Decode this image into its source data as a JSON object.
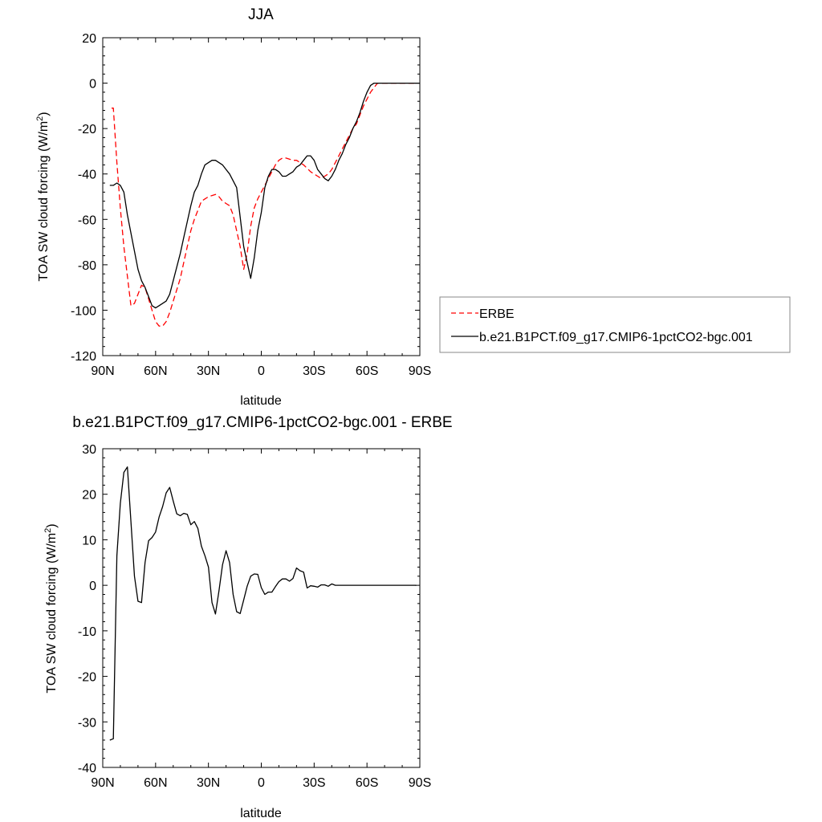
{
  "chart_data": [
    {
      "type": "line",
      "title": "JJA",
      "xlabel": "latitude",
      "ylabel": "TOA SW cloud forcing (W/m",
      "ylabel_sup": "2",
      "ylabel_close": ")",
      "xlim": [
        90,
        -90
      ],
      "ylim": [
        -120,
        20
      ],
      "xticks": [
        90,
        60,
        30,
        0,
        -30,
        -60,
        -90
      ],
      "xtick_labels": [
        "90N",
        "60N",
        "30N",
        "0",
        "30S",
        "60S",
        "90S"
      ],
      "yticks": [
        20,
        0,
        -20,
        -40,
        -60,
        -80,
        -100,
        -120
      ],
      "ytick_labels": [
        "20",
        "0",
        "-20",
        "-40",
        "-60",
        "-80",
        "-100",
        "-120"
      ],
      "legend_position": "right",
      "series": [
        {
          "name": "ERBE",
          "color": "#ff0000",
          "style": "dashed",
          "x": [
            85,
            84,
            82,
            80,
            78,
            76,
            74,
            72,
            70,
            68,
            66,
            64,
            62,
            60,
            58,
            56,
            54,
            52,
            50,
            48,
            46,
            44,
            42,
            40,
            38,
            36,
            34,
            32,
            30,
            28,
            26,
            24,
            22,
            20,
            18,
            16,
            14,
            12,
            10,
            8,
            6,
            4,
            2,
            0,
            -2,
            -4,
            -6,
            -8,
            -10,
            -12,
            -14,
            -16,
            -18,
            -20,
            -22,
            -24,
            -26,
            -28,
            -30,
            -32,
            -34,
            -36,
            -38,
            -40,
            -42,
            -44,
            -46,
            -48,
            -50,
            -52,
            -54,
            -56,
            -58,
            -60,
            -62,
            -64,
            -66,
            -68,
            -70,
            -72,
            -74,
            -76,
            -78,
            -80,
            -82,
            -84,
            -86,
            -88
          ],
          "y": [
            -11,
            -11,
            -35,
            -55,
            -72,
            -85,
            -98,
            -97,
            -93,
            -89,
            -90,
            -95,
            -100,
            -105,
            -107,
            -107,
            -105,
            -101,
            -96,
            -91,
            -86,
            -79,
            -72,
            -65,
            -60,
            -56,
            -52,
            -51,
            -50,
            -49.5,
            -49,
            -50,
            -52,
            -53,
            -54,
            -58,
            -65,
            -72,
            -82,
            -75,
            -63,
            -55,
            -51,
            -48,
            -45,
            -42,
            -39,
            -36,
            -34,
            -33,
            -33,
            -33.5,
            -34,
            -34,
            -35,
            -36,
            -37.5,
            -39,
            -40,
            -41,
            -42,
            -41,
            -40,
            -38,
            -35,
            -32,
            -29,
            -26,
            -23,
            -20,
            -18,
            -14,
            -10,
            -7,
            -4,
            -2,
            0,
            0,
            0,
            0,
            0,
            0,
            0,
            0,
            0,
            0,
            0,
            0
          ]
        },
        {
          "name": "b.e21.B1PCT.f09_g17.CMIP6-1pctCO2-bgc.001",
          "color": "#000000",
          "style": "solid",
          "x": [
            86,
            84,
            82,
            80,
            78,
            76,
            74,
            72,
            70,
            68,
            66,
            64,
            62,
            60,
            58,
            56,
            54,
            52,
            50,
            48,
            46,
            44,
            42,
            40,
            38,
            36,
            34,
            32,
            30,
            28,
            26,
            24,
            22,
            20,
            18,
            16,
            14,
            12,
            10,
            8,
            6,
            4,
            2,
            0,
            -2,
            -4,
            -6,
            -8,
            -10,
            -12,
            -14,
            -16,
            -18,
            -20,
            -22,
            -24,
            -26,
            -28,
            -30,
            -32,
            -34,
            -36,
            -38,
            -40,
            -42,
            -44,
            -46,
            -48,
            -50,
            -52,
            -54,
            -56,
            -58,
            -60,
            -62,
            -64,
            -66,
            -68,
            -70,
            -72,
            -74,
            -76,
            -78,
            -80,
            -82,
            -84,
            -86,
            -88,
            -90
          ],
          "y": [
            -45,
            -45,
            -44,
            -45,
            -48,
            -58,
            -66,
            -74,
            -82,
            -87,
            -90,
            -94,
            -98,
            -99,
            -98,
            -97,
            -96,
            -93,
            -87,
            -81,
            -75,
            -68,
            -61,
            -54,
            -48,
            -45,
            -40,
            -36,
            -35,
            -34,
            -34,
            -35,
            -36,
            -38,
            -40,
            -43,
            -46,
            -59,
            -72,
            -79,
            -86,
            -77,
            -65,
            -57,
            -46,
            -41,
            -38,
            -38,
            -39,
            -41,
            -41,
            -40,
            -39,
            -37,
            -36,
            -34,
            -32,
            -32,
            -34,
            -38,
            -40,
            -42,
            -43,
            -41,
            -38,
            -34,
            -31,
            -27,
            -24,
            -20,
            -17,
            -13,
            -8,
            -4,
            -1,
            0,
            0,
            0,
            0,
            0,
            0,
            0,
            0,
            0,
            0,
            0,
            0,
            0,
            0
          ]
        }
      ]
    },
    {
      "type": "line",
      "title": "b.e21.B1PCT.f09_g17.CMIP6-1pctCO2-bgc.001 - ERBE",
      "xlabel": "latitude",
      "ylabel": "TOA SW cloud forcing (W/m",
      "ylabel_sup": "2",
      "ylabel_close": ")",
      "xlim": [
        90,
        -90
      ],
      "ylim": [
        -40,
        30
      ],
      "xticks": [
        90,
        60,
        30,
        0,
        -30,
        -60,
        -90
      ],
      "xtick_labels": [
        "90N",
        "60N",
        "30N",
        "0",
        "30S",
        "60S",
        "90S"
      ],
      "yticks": [
        30,
        20,
        10,
        0,
        -10,
        -20,
        -30,
        -40
      ],
      "ytick_labels": [
        "30",
        "20",
        "10",
        "0",
        "-10",
        "-20",
        "-30",
        "-40"
      ],
      "series": [
        {
          "color": "#000000",
          "style": "solid",
          "x": [
            86,
            84,
            82,
            80,
            78,
            76,
            74,
            72,
            70,
            68,
            66,
            64,
            62,
            60,
            58,
            56,
            54,
            52,
            50,
            48,
            46,
            44,
            42,
            40,
            38,
            36,
            34,
            32,
            30,
            28,
            26,
            24,
            22,
            20,
            18,
            16,
            14,
            12,
            10,
            8,
            6,
            4,
            2,
            0,
            -2,
            -4,
            -6,
            -8,
            -10,
            -12,
            -14,
            -16,
            -18,
            -20,
            -22,
            -24,
            -26,
            -28,
            -30,
            -32,
            -34,
            -36,
            -38,
            -40,
            -42,
            -44,
            -46,
            -48,
            -50,
            -52,
            -54,
            -56,
            -58,
            -60,
            -62,
            -64,
            -66,
            -68,
            -70,
            -72,
            -74,
            -76,
            -78,
            -80,
            -82,
            -84,
            -86,
            -88
          ],
          "y": [
            -34,
            -33.7,
            6.5,
            18,
            24.8,
            26,
            14,
            2,
            -3.5,
            -3.8,
            5,
            9.8,
            10.5,
            11.7,
            15,
            17.3,
            20.3,
            21.5,
            18.5,
            15.7,
            15.3,
            15.8,
            15.6,
            13.3,
            14,
            12.5,
            8.6,
            6.5,
            4,
            -3.8,
            -6.3,
            -1.2,
            4.5,
            7.6,
            5,
            -2,
            -5.8,
            -6.2,
            -3.2,
            -0.2,
            2,
            2.5,
            2.4,
            -0.5,
            -2,
            -1.5,
            -1.5,
            -0.3,
            0.8,
            1.4,
            1.4,
            0.9,
            1.5,
            3.8,
            3.2,
            2.9,
            -0.6,
            -0.1,
            -0.2,
            -0.4,
            0.1,
            0.1,
            -0.2,
            0.3,
            0,
            0,
            0,
            0,
            0,
            0,
            0,
            0,
            0,
            0,
            0,
            0,
            0,
            0,
            0,
            0,
            0,
            0,
            0,
            0,
            0,
            0,
            0,
            0
          ]
        }
      ]
    }
  ]
}
